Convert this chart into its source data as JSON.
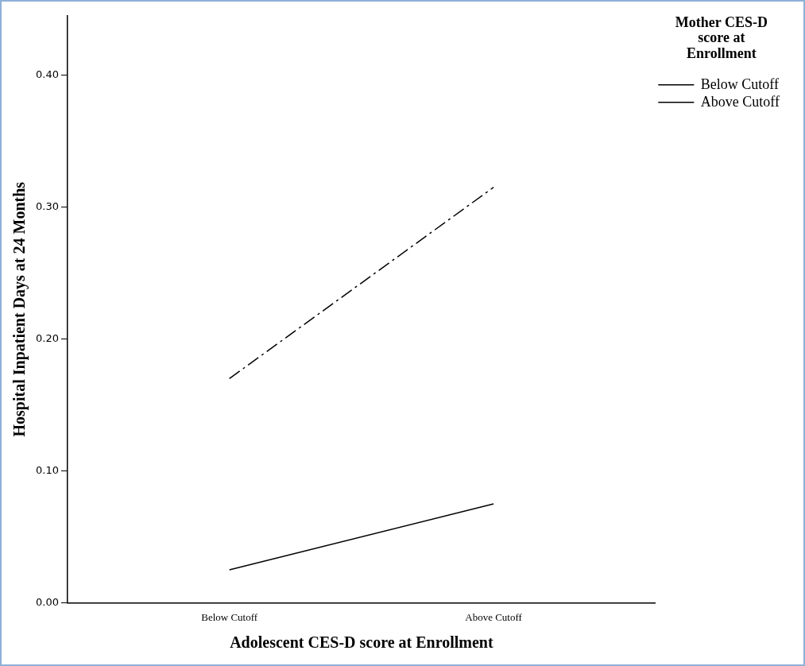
{
  "chart_data": {
    "type": "line",
    "xlabel": "Adolescent CES-D score at Enrollment",
    "ylabel": "Hospital Inpatient Days at 24 Months",
    "legend_title": "Mother CES-D score at Enrollment",
    "categories": [
      "Below Cutoff",
      "Above Cutoff"
    ],
    "series": [
      {
        "name": "Below Cutoff",
        "color": "#000000",
        "values": [
          0.025,
          0.075
        ],
        "line_style": "solid"
      },
      {
        "name": "Above Cutoff",
        "color": "#000000",
        "values": [
          0.17,
          0.315
        ],
        "line_style": "dashdot"
      }
    ],
    "ylim": [
      0,
      0.445
    ],
    "yticks": [
      {
        "value": 0,
        "label": "0.00"
      },
      {
        "value": 0.1,
        "label": "0.10"
      },
      {
        "value": 0.2,
        "label": "0.20"
      },
      {
        "value": 0.3,
        "label": "0.30"
      },
      {
        "value": 0.4,
        "label": "0.40"
      }
    ],
    "grid": false,
    "legend": "top right",
    "marker": "none"
  }
}
